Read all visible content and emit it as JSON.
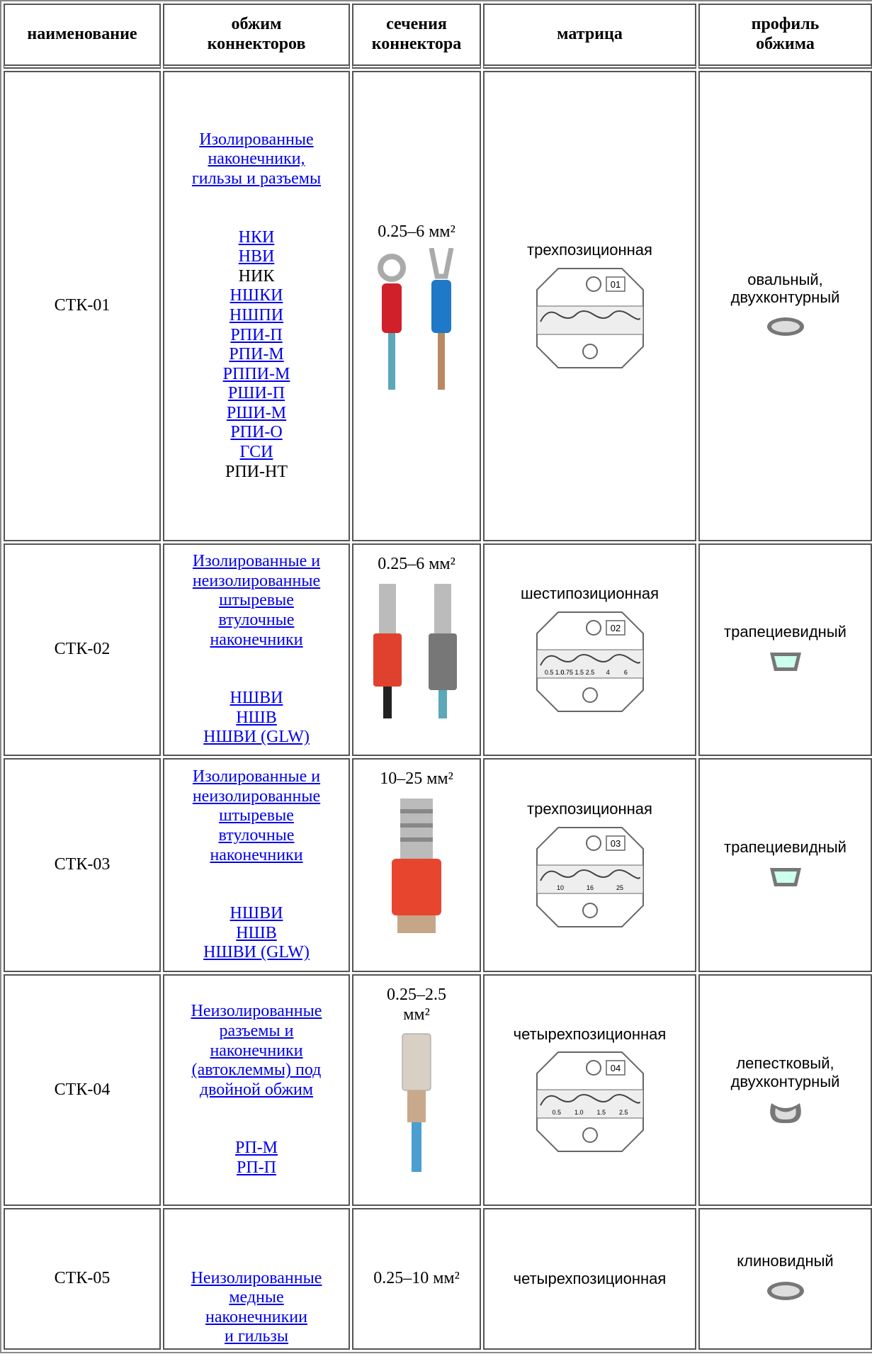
{
  "header": {
    "columns": [
      [
        "наименование"
      ],
      [
        "обжим",
        "коннекторов"
      ],
      [
        "сечения",
        "коннектора"
      ],
      [
        "матрица"
      ],
      [
        "профиль",
        "обжима"
      ]
    ]
  },
  "table": {
    "rows": [
      {
        "name": "СТК-01",
        "description": [
          "Изолированные",
          "наконечники,",
          "гильзы и разъемы"
        ],
        "items": [
          {
            "text": "НКИ",
            "link": true
          },
          {
            "text": "НВИ",
            "link": true
          },
          {
            "text": "НИК",
            "link": false
          },
          {
            "text": "НШКИ",
            "link": true
          },
          {
            "text": "НШПИ",
            "link": true
          },
          {
            "text": "РПИ-П",
            "link": true
          },
          {
            "text": "РПИ-М",
            "link": true
          },
          {
            "text": "РППИ-М",
            "link": true
          },
          {
            "text": "РШИ-П",
            "link": true
          },
          {
            "text": "РШИ-М",
            "link": true
          },
          {
            "text": "РПИ-О",
            "link": true
          },
          {
            "text": "ГСИ",
            "link": true
          },
          {
            "text": "РПИ-НТ",
            "link": false
          }
        ],
        "section": [
          "0.25–6 мм²"
        ],
        "matrix": "трехпозиционная",
        "die": {
          "number": "01",
          "labels": []
        },
        "profile": [
          "овальный,",
          "двухконтурный"
        ]
      },
      {
        "name": "СТК-02",
        "description": [
          "Изолированные и",
          "неизолированные",
          "штыревые",
          "втулочные",
          "наконечники"
        ],
        "items": [
          {
            "text": "НШВИ",
            "link": true
          },
          {
            "text": "НШВ",
            "link": true
          },
          {
            "text": "НШВИ (GLW)",
            "link": true
          }
        ],
        "section": [
          "0.25–6 мм²"
        ],
        "matrix": "шестипозиционная",
        "die": {
          "number": "02",
          "labels": [
            "0.5 1.0",
            "0.75 1.5",
            "2.5",
            "4",
            "6"
          ]
        },
        "profile": [
          "трапециевидный"
        ]
      },
      {
        "name": "СТК-03",
        "description": [
          "Изолированные и",
          "неизолированные",
          "штыревые",
          "втулочные",
          "наконечники"
        ],
        "items": [
          {
            "text": "НШВИ",
            "link": true
          },
          {
            "text": "НШВ",
            "link": true
          },
          {
            "text": "НШВИ (GLW)",
            "link": true
          }
        ],
        "section": [
          "10–25 мм²"
        ],
        "matrix": "трехпозиционная",
        "die": {
          "number": "03",
          "labels": [
            "10",
            "16",
            "25"
          ]
        },
        "profile": [
          "трапециевидный"
        ]
      },
      {
        "name": "СТК-04",
        "description": [
          "Неизолированные",
          "разъемы и",
          "наконечники",
          "(автоклеммы) под",
          "двойной обжим"
        ],
        "items": [
          {
            "text": "РП-М",
            "link": true
          },
          {
            "text": "РП-П",
            "link": true
          }
        ],
        "section": [
          "0.25–2.5",
          "мм²"
        ],
        "matrix": "четырехпозиционная",
        "die": {
          "number": "04",
          "labels": [
            "0.5",
            "1.0",
            "1.5",
            "2.5"
          ]
        },
        "profile": [
          "лепестковый,",
          "двухконтурный"
        ]
      },
      {
        "name": "СТК-05",
        "description": [
          "Неизолированные",
          "медные",
          "наконечникии",
          "и гильзы"
        ],
        "items": [],
        "section": [
          "0.25–10 мм²"
        ],
        "matrix": "четырехпозиционная",
        "profile": [
          "клиновидный"
        ]
      }
    ]
  }
}
